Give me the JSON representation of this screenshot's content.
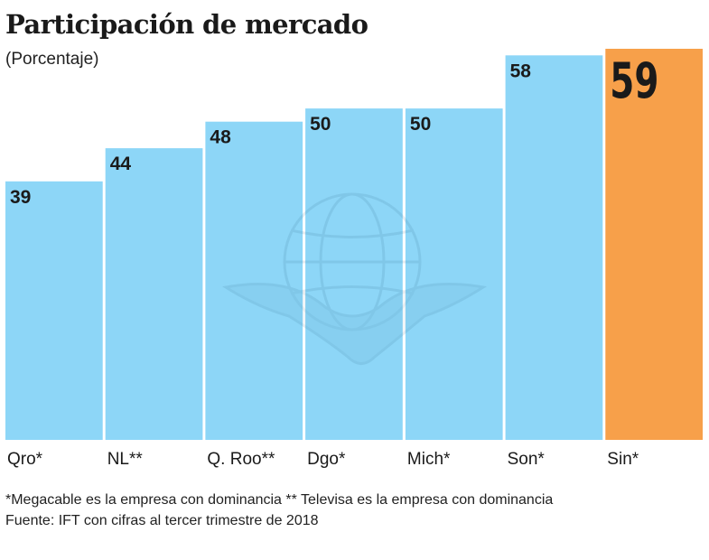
{
  "chart_data": {
    "type": "bar",
    "title": "Participación de mercado",
    "subtitle": "(Porcentaje)",
    "categories": [
      "Qro*",
      "NL**",
      "Q. Roo**",
      "Dgo*",
      "Mich*",
      "Son*",
      "Sin*"
    ],
    "values": [
      39,
      44,
      48,
      50,
      50,
      58,
      59
    ],
    "value_labels": [
      "39",
      "44",
      "48",
      "50",
      "50",
      "58",
      "59"
    ],
    "highlight_index": 6,
    "xlabel": "",
    "ylabel": "",
    "ylim": [
      0,
      59
    ],
    "grid": false,
    "legend": "none"
  },
  "colors": {
    "bar": "#8DD6F7",
    "highlight": "#F7A04A",
    "text": "#1a1a1a"
  },
  "footnotes": {
    "line1": "*Megacable  es la empresa con dominancia ** Televisa es la empresa con dominancia",
    "line2": "Fuente: IFT con cifras al tercer trimestre de 2018"
  },
  "watermark": {
    "icon": "eagle-globe-watermark-icon"
  }
}
